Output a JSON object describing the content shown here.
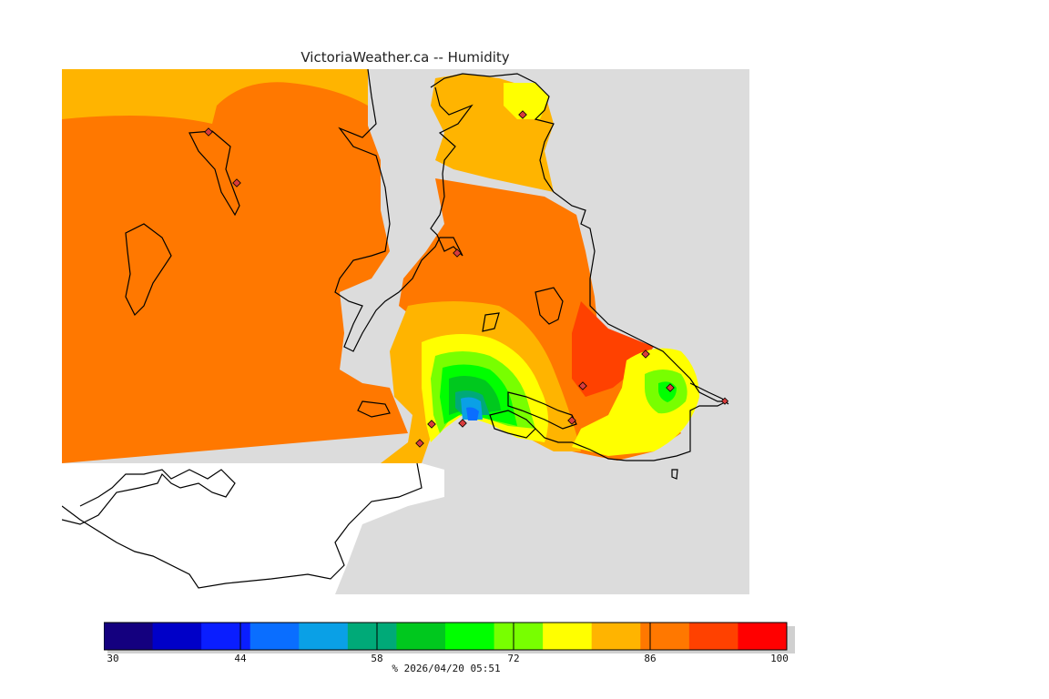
{
  "title": "VictoriaWeather.ca -- Humidity",
  "colors": {
    "land_background": "#dcdcdc",
    "outside_data": "#ffffff",
    "coastline": "#000000",
    "station_marker": "#d83c3c"
  },
  "colorbar": {
    "min": 30,
    "max": 100,
    "step": 5,
    "tick_labels": [
      "30",
      "44",
      "58",
      "72",
      "86",
      "100"
    ],
    "colors": [
      "#14007f",
      "#0000c8",
      "#0a1eff",
      "#0a6eff",
      "#0aa0e6",
      "#00aa78",
      "#00c81e",
      "#00ff00",
      "#78ff00",
      "#ffff00",
      "#ffb400",
      "#ff7800",
      "#ff4100",
      "#ff0000"
    ]
  },
  "caption": "%  2026/04/20 05:51",
  "stations_count": 12
}
